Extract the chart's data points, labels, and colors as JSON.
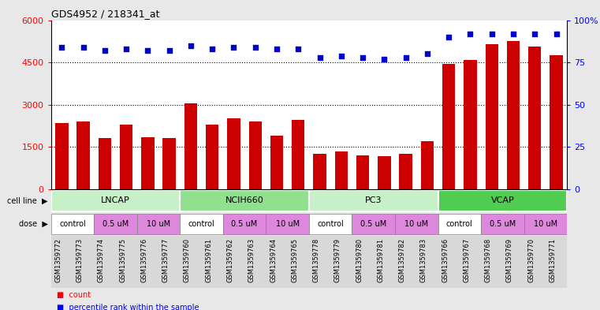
{
  "title": "GDS4952 / 218341_at",
  "samples": [
    "GSM1359772",
    "GSM1359773",
    "GSM1359774",
    "GSM1359775",
    "GSM1359776",
    "GSM1359777",
    "GSM1359760",
    "GSM1359761",
    "GSM1359762",
    "GSM1359763",
    "GSM1359764",
    "GSM1359765",
    "GSM1359778",
    "GSM1359779",
    "GSM1359780",
    "GSM1359781",
    "GSM1359782",
    "GSM1359783",
    "GSM1359766",
    "GSM1359767",
    "GSM1359768",
    "GSM1359769",
    "GSM1359770",
    "GSM1359771"
  ],
  "counts": [
    2350,
    2400,
    1800,
    2300,
    1850,
    1820,
    3050,
    2300,
    2500,
    2400,
    1900,
    2450,
    1250,
    1350,
    1200,
    1170,
    1250,
    1700,
    4450,
    4600,
    5150,
    5250,
    5050,
    4750
  ],
  "percentile_ranks": [
    84,
    84,
    82,
    83,
    82,
    82,
    85,
    83,
    84,
    84,
    83,
    83,
    78,
    79,
    78,
    77,
    78,
    80,
    90,
    92,
    92,
    92,
    92,
    92
  ],
  "cell_lines": [
    {
      "name": "LNCAP",
      "start": 0,
      "end": 6,
      "color": "#c8f0c8"
    },
    {
      "name": "NCIH660",
      "start": 6,
      "end": 12,
      "color": "#90e090"
    },
    {
      "name": "PC3",
      "start": 12,
      "end": 18,
      "color": "#c8f0c8"
    },
    {
      "name": "VCAP",
      "start": 18,
      "end": 24,
      "color": "#50cc50"
    }
  ],
  "dose_groups": [
    {
      "label": "control",
      "start": 0,
      "end": 2,
      "color": "#ffffff"
    },
    {
      "label": "0.5 uM",
      "start": 2,
      "end": 4,
      "color": "#dd88dd"
    },
    {
      "label": "10 uM",
      "start": 4,
      "end": 6,
      "color": "#dd88dd"
    },
    {
      "label": "control",
      "start": 6,
      "end": 8,
      "color": "#ffffff"
    },
    {
      "label": "0.5 uM",
      "start": 8,
      "end": 10,
      "color": "#dd88dd"
    },
    {
      "label": "10 uM",
      "start": 10,
      "end": 12,
      "color": "#dd88dd"
    },
    {
      "label": "control",
      "start": 12,
      "end": 14,
      "color": "#ffffff"
    },
    {
      "label": "0.5 uM",
      "start": 14,
      "end": 16,
      "color": "#dd88dd"
    },
    {
      "label": "10 uM",
      "start": 16,
      "end": 18,
      "color": "#dd88dd"
    },
    {
      "label": "control",
      "start": 18,
      "end": 20,
      "color": "#ffffff"
    },
    {
      "label": "0.5 uM",
      "start": 20,
      "end": 22,
      "color": "#dd88dd"
    },
    {
      "label": "10 uM",
      "start": 22,
      "end": 24,
      "color": "#dd88dd"
    }
  ],
  "bar_color": "#cc0000",
  "dot_color": "#0000cc",
  "ylim_left": [
    0,
    6000
  ],
  "ylim_right": [
    0,
    100
  ],
  "yticks_left": [
    0,
    1500,
    3000,
    4500,
    6000
  ],
  "yticks_right": [
    0,
    25,
    50,
    75,
    100
  ],
  "bg_color": "#e8e8e8",
  "plot_bg": "#ffffff"
}
